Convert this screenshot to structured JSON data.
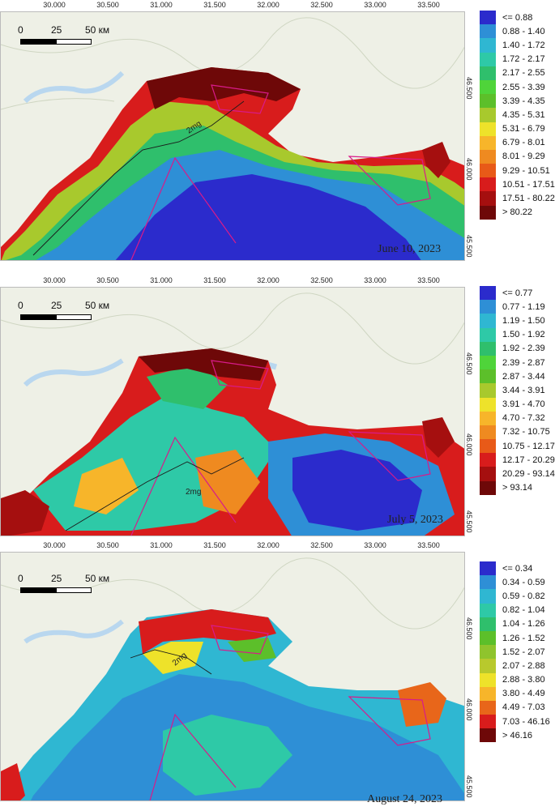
{
  "x_ticks": [
    "30.000",
    "30.500",
    "31.000",
    "31.500",
    "32.000",
    "32.500",
    "33.000",
    "33.500"
  ],
  "y_ticks": [
    "46.500",
    "46.000",
    "45.500"
  ],
  "scalebar": {
    "zero": "0",
    "mid": "25",
    "end": "50 км"
  },
  "contour_label": "2mg",
  "colors": {
    "land": "#eef0e6",
    "sea": "#1f3fd6",
    "river": "#b9d7ef",
    "boundary": "#d81b8a",
    "contour": "#1a1a1a"
  },
  "panels": [
    {
      "date": "June 10, 2023",
      "legend": [
        {
          "label": "<= 0.88",
          "color": "#2b2bcc"
        },
        {
          "label": "0.88 - 1.40",
          "color": "#2e8fd6"
        },
        {
          "label": "1.40 - 1.72",
          "color": "#2fb7d2"
        },
        {
          "label": "1.72 - 2.17",
          "color": "#2ec9a7"
        },
        {
          "label": "2.17 - 2.55",
          "color": "#2fbf6c"
        },
        {
          "label": "2.55 - 3.39",
          "color": "#4fd43a"
        },
        {
          "label": "3.39 - 4.35",
          "color": "#5cbf2a"
        },
        {
          "label": "4.35 - 5.31",
          "color": "#a8c92d"
        },
        {
          "label": "5.31 - 6.79",
          "color": "#eee22a"
        },
        {
          "label": "6.79 - 8.01",
          "color": "#f7b52a"
        },
        {
          "label": "8.01 - 9.29",
          "color": "#ef8a20"
        },
        {
          "label": "9.29 - 10.51",
          "color": "#e85a18"
        },
        {
          "label": "10.51 - 17.51",
          "color": "#d81c1c"
        },
        {
          "label": "17.51 - 80.22",
          "color": "#a50f0f"
        },
        {
          "label": "> 80.22",
          "color": "#6e0808"
        }
      ]
    },
    {
      "date": "July 5, 2023",
      "legend": [
        {
          "label": "<= 0.77",
          "color": "#2b2bcc"
        },
        {
          "label": "0.77 - 1.19",
          "color": "#2e8fd6"
        },
        {
          "label": "1.19 - 1.50",
          "color": "#2fb7d2"
        },
        {
          "label": "1.50 - 1.92",
          "color": "#2ec9a7"
        },
        {
          "label": "1.92 - 2.39",
          "color": "#2fbf6c"
        },
        {
          "label": "2.39 - 2.87",
          "color": "#4fd43a"
        },
        {
          "label": "2.87 - 3.44",
          "color": "#5cbf2a"
        },
        {
          "label": "3.44 - 3.91",
          "color": "#a8c92d"
        },
        {
          "label": "3.91 - 4.70",
          "color": "#eee22a"
        },
        {
          "label": "4.70 - 7.32",
          "color": "#f7b52a"
        },
        {
          "label": "7.32 - 10.75",
          "color": "#ef8a20"
        },
        {
          "label": "10.75 - 12.17",
          "color": "#e85a18"
        },
        {
          "label": "12.17 - 20.29",
          "color": "#d81c1c"
        },
        {
          "label": "20.29 - 93.14",
          "color": "#a50f0f"
        },
        {
          "label": "> 93.14",
          "color": "#6e0808"
        }
      ]
    },
    {
      "date": "August 24, 2023",
      "legend": [
        {
          "label": "<= 0.34",
          "color": "#2b2bcc"
        },
        {
          "label": "0.34 - 0.59",
          "color": "#2e8fd6"
        },
        {
          "label": "0.59 - 0.82",
          "color": "#2fb7d2"
        },
        {
          "label": "0.82 - 1.04",
          "color": "#2ec9a7"
        },
        {
          "label": "1.04 - 1.26",
          "color": "#2fbf6c"
        },
        {
          "label": "1.26 - 1.52",
          "color": "#5cbf2a"
        },
        {
          "label": "1.52 - 2.07",
          "color": "#8fc42d"
        },
        {
          "label": "2.07 - 2.88",
          "color": "#b8c92d"
        },
        {
          "label": "2.88 - 3.80",
          "color": "#eee22a"
        },
        {
          "label": "3.80 - 4.49",
          "color": "#f7b52a"
        },
        {
          "label": "4.49 - 7.03",
          "color": "#e8661a"
        },
        {
          "label": "7.03 - 46.16",
          "color": "#d81c1c"
        },
        {
          "label": "> 46.16",
          "color": "#6e0808"
        }
      ]
    }
  ]
}
